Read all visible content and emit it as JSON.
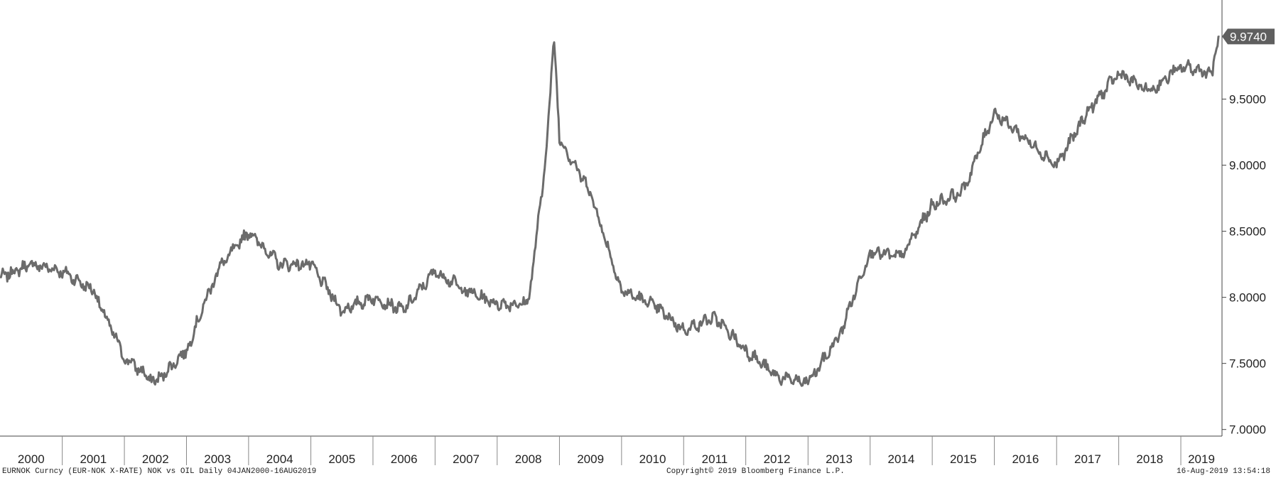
{
  "chart_data": {
    "type": "line",
    "series": [
      {
        "x": [
          "2000-01",
          "2000-07",
          "2001-01",
          "2001-07",
          "2002-01",
          "2002-07",
          "2003-01",
          "2003-07",
          "2004-01",
          "2004-07",
          "2005-01",
          "2005-07",
          "2006-01",
          "2006-07",
          "2007-01",
          "2007-07",
          "2008-01",
          "2008-07",
          "2008-10",
          "2008-12",
          "2009-01",
          "2009-07",
          "2010-01",
          "2010-07",
          "2011-01",
          "2011-07",
          "2012-01",
          "2012-07",
          "2013-01",
          "2013-07",
          "2014-01",
          "2014-07",
          "2015-01",
          "2015-07",
          "2016-01",
          "2016-07",
          "2017-01",
          "2017-07",
          "2018-01",
          "2018-07",
          "2019-01",
          "2019-07",
          "2019-08"
        ],
        "values": [
          8.15,
          8.25,
          8.2,
          8.05,
          7.55,
          7.35,
          7.6,
          8.2,
          8.5,
          8.25,
          8.25,
          7.9,
          8.0,
          7.9,
          8.2,
          8.05,
          7.95,
          7.95,
          8.9,
          9.95,
          9.2,
          8.8,
          8.05,
          7.95,
          7.75,
          7.85,
          7.6,
          7.4,
          7.35,
          7.7,
          8.35,
          8.3,
          8.7,
          8.8,
          9.4,
          9.2,
          9.0,
          9.4,
          9.7,
          9.55,
          9.75,
          9.7,
          9.97
        ]
      }
    ],
    "ylim": [
      6.95,
      10.25
    ],
    "yticks": [
      "7.0000",
      "7.5000",
      "8.0000",
      "8.5000",
      "9.0000",
      "9.5000"
    ],
    "xticks": [
      "2000",
      "2001",
      "2002",
      "2003",
      "2004",
      "2005",
      "2006",
      "2007",
      "2008",
      "2009",
      "2010",
      "2011",
      "2012",
      "2013",
      "2014",
      "2015",
      "2016",
      "2017",
      "2018",
      "2019"
    ],
    "last_value": "9.9740",
    "grid": false,
    "line_color": "#6b6b6b"
  },
  "footer": {
    "left": "EURNOK Curncy (EUR-NOK X-RATE) NOK vs OIL  Daily 04JAN2000-16AUG2019",
    "center": "Copyright© 2019 Bloomberg Finance L.P.",
    "right": "16-Aug-2019 13:54:18"
  }
}
